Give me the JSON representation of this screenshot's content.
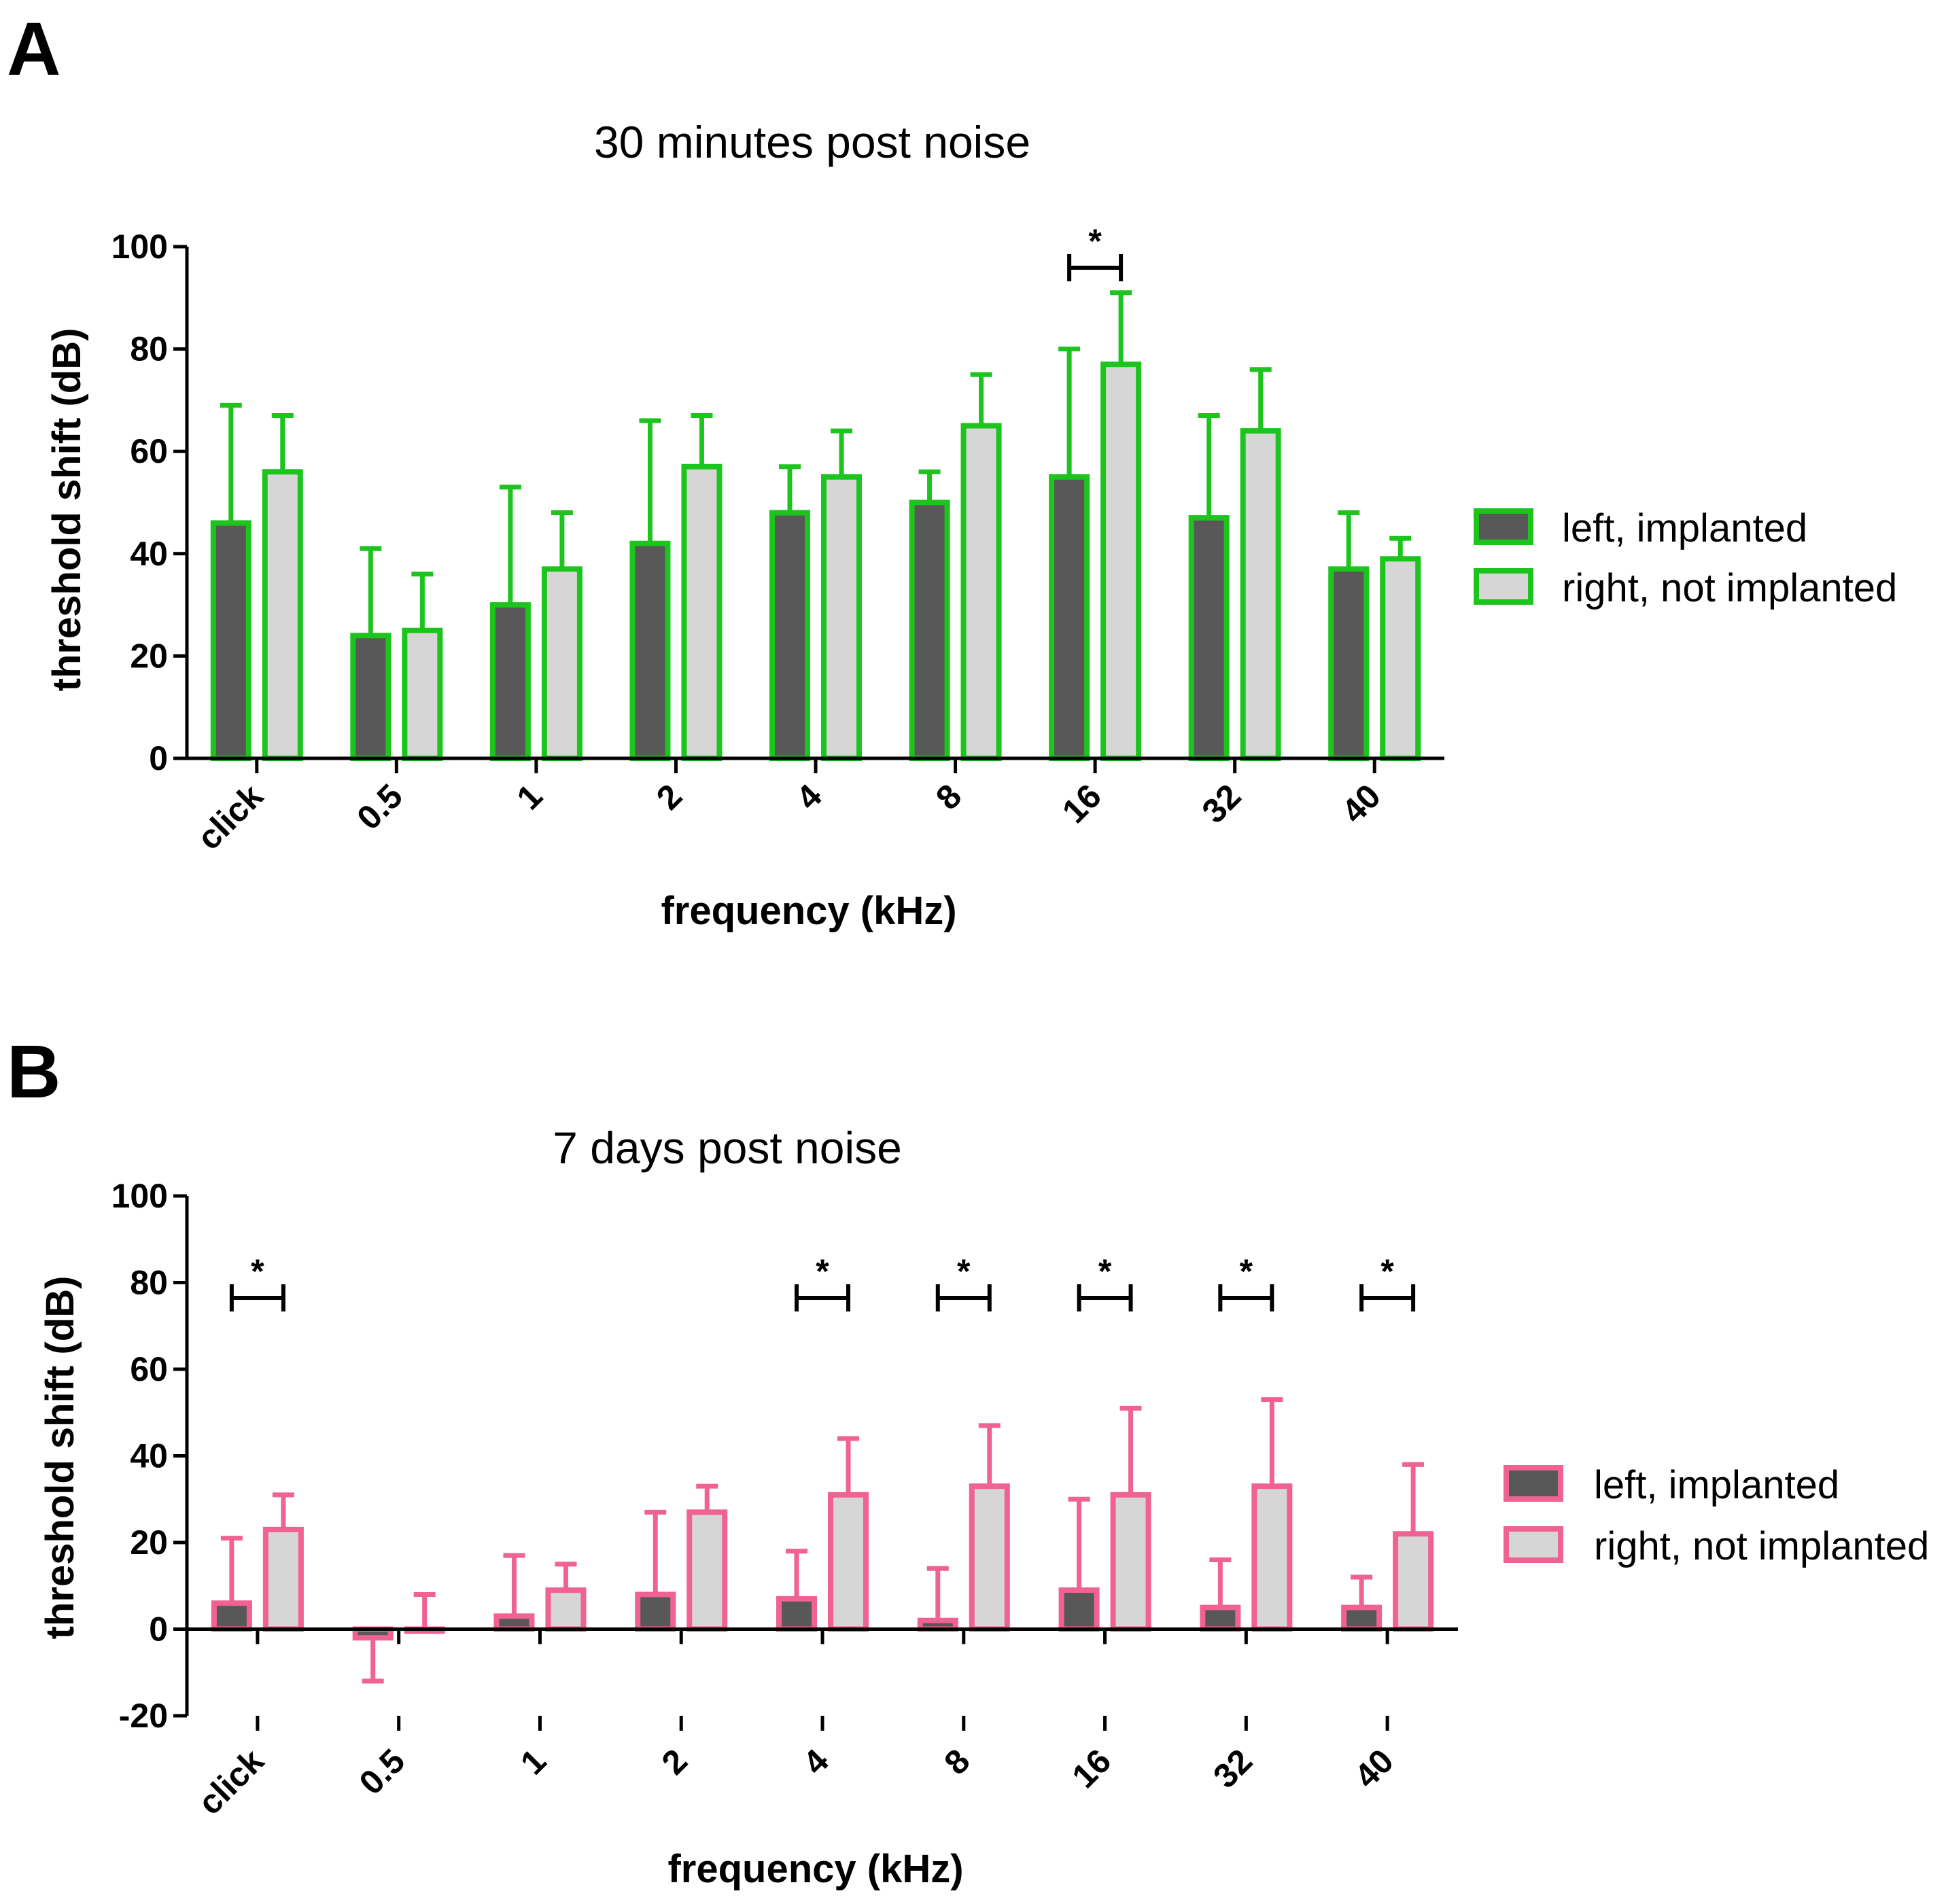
{
  "panel_labels": [
    "A",
    "B"
  ],
  "chart_data": [
    {
      "type": "bar",
      "panel": "A",
      "title": "30 minutes post noise",
      "xlabel": "frequency (kHz)",
      "ylabel": "threshold shift (dB)",
      "ylim": [
        0,
        100
      ],
      "yticks": [
        0,
        20,
        40,
        60,
        80,
        100
      ],
      "categories": [
        "click",
        "0.5",
        "1",
        "2",
        "4",
        "8",
        "16",
        "32",
        "40"
      ],
      "accent_color": "#1ec41e",
      "series": [
        {
          "name": "left, implanted",
          "fill": "#585858",
          "values": [
            46,
            24,
            30,
            42,
            48,
            50,
            55,
            47,
            37
          ],
          "error": [
            23,
            17,
            23,
            24,
            9,
            6,
            25,
            20,
            11
          ]
        },
        {
          "name": "right, not implanted",
          "fill": "#d6d6d6",
          "values": [
            56,
            25,
            37,
            57,
            55,
            65,
            77,
            64,
            39
          ],
          "error": [
            11,
            11,
            11,
            10,
            9,
            10,
            14,
            12,
            4
          ]
        }
      ],
      "significance": [
        {
          "category": "16",
          "label": "*"
        }
      ],
      "legend_position": "right"
    },
    {
      "type": "bar",
      "panel": "B",
      "title": "7 days post noise",
      "xlabel": "frequency (kHz)",
      "ylabel": "threshold shift (dB)",
      "ylim": [
        -20,
        100
      ],
      "yticks": [
        -20,
        0,
        20,
        40,
        60,
        80,
        100
      ],
      "categories": [
        "click",
        "0.5",
        "1",
        "2",
        "4",
        "8",
        "16",
        "32",
        "40"
      ],
      "accent_color": "#f06292",
      "series": [
        {
          "name": "left, implanted",
          "fill": "#585858",
          "values": [
            6,
            -2,
            3,
            8,
            7,
            2,
            9,
            5,
            5
          ],
          "error": [
            15,
            10,
            14,
            19,
            11,
            12,
            21,
            11,
            7
          ]
        },
        {
          "name": "right, not implanted",
          "fill": "#d6d6d6",
          "values": [
            23,
            0,
            9,
            27,
            31,
            33,
            31,
            33,
            22
          ],
          "error": [
            8,
            8,
            6,
            6,
            13,
            14,
            20,
            20,
            16
          ]
        }
      ],
      "significance": [
        {
          "category": "click",
          "label": "*"
        },
        {
          "category": "4",
          "label": "*"
        },
        {
          "category": "8",
          "label": "*"
        },
        {
          "category": "16",
          "label": "*"
        },
        {
          "category": "32",
          "label": "*"
        },
        {
          "category": "40",
          "label": "*"
        }
      ],
      "legend_position": "right"
    }
  ]
}
